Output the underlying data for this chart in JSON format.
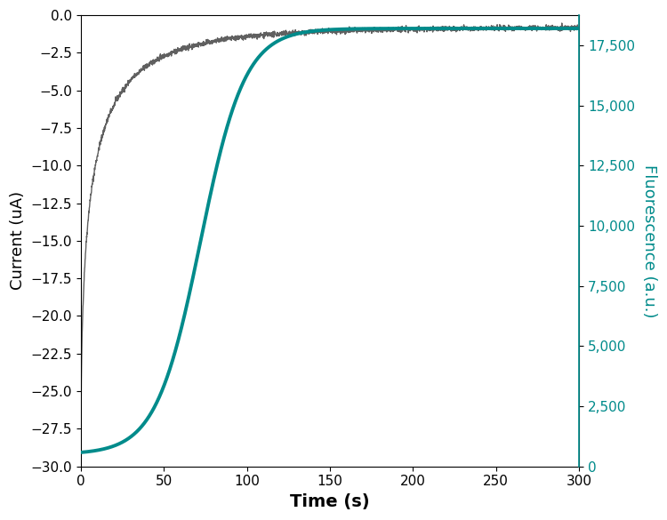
{
  "title": "",
  "xlabel": "Time (s)",
  "ylabel_left": "Current (uA)",
  "ylabel_right": "Fluorescence (a.u.)",
  "xlim": [
    0,
    300
  ],
  "ylim_left": [
    -30.0,
    0.0
  ],
  "ylim_right": [
    0,
    18750
  ],
  "xticks": [
    0,
    50,
    100,
    150,
    200,
    250,
    300
  ],
  "yticks_left": [
    0.0,
    -2.5,
    -5.0,
    -7.5,
    -10.0,
    -12.5,
    -15.0,
    -17.5,
    -20.0,
    -22.5,
    -25.0,
    -27.5,
    -30.0
  ],
  "yticks_right": [
    0,
    2500,
    5000,
    7500,
    10000,
    12500,
    15000,
    17500
  ],
  "current_color": "#606060",
  "fluorescence_color": "#008B8B",
  "background_color": "#ffffff",
  "current_noise_amplitude": 0.08,
  "t_max": 300,
  "n_points": 3000,
  "current_scale": -29.0,
  "current_tau": 18.0,
  "current_plateau": -0.8,
  "fluor_max": 18200,
  "fluor_min": 500,
  "fluor_k": 0.075,
  "fluor_t0": 72.0,
  "xlabel_fontsize": 14,
  "ylabel_fontsize": 13,
  "tick_fontsize": 11,
  "linewidth_current": 1.0,
  "linewidth_fluor": 2.8,
  "figure_width": 7.5,
  "figure_height": 5.85,
  "dpi": 100
}
